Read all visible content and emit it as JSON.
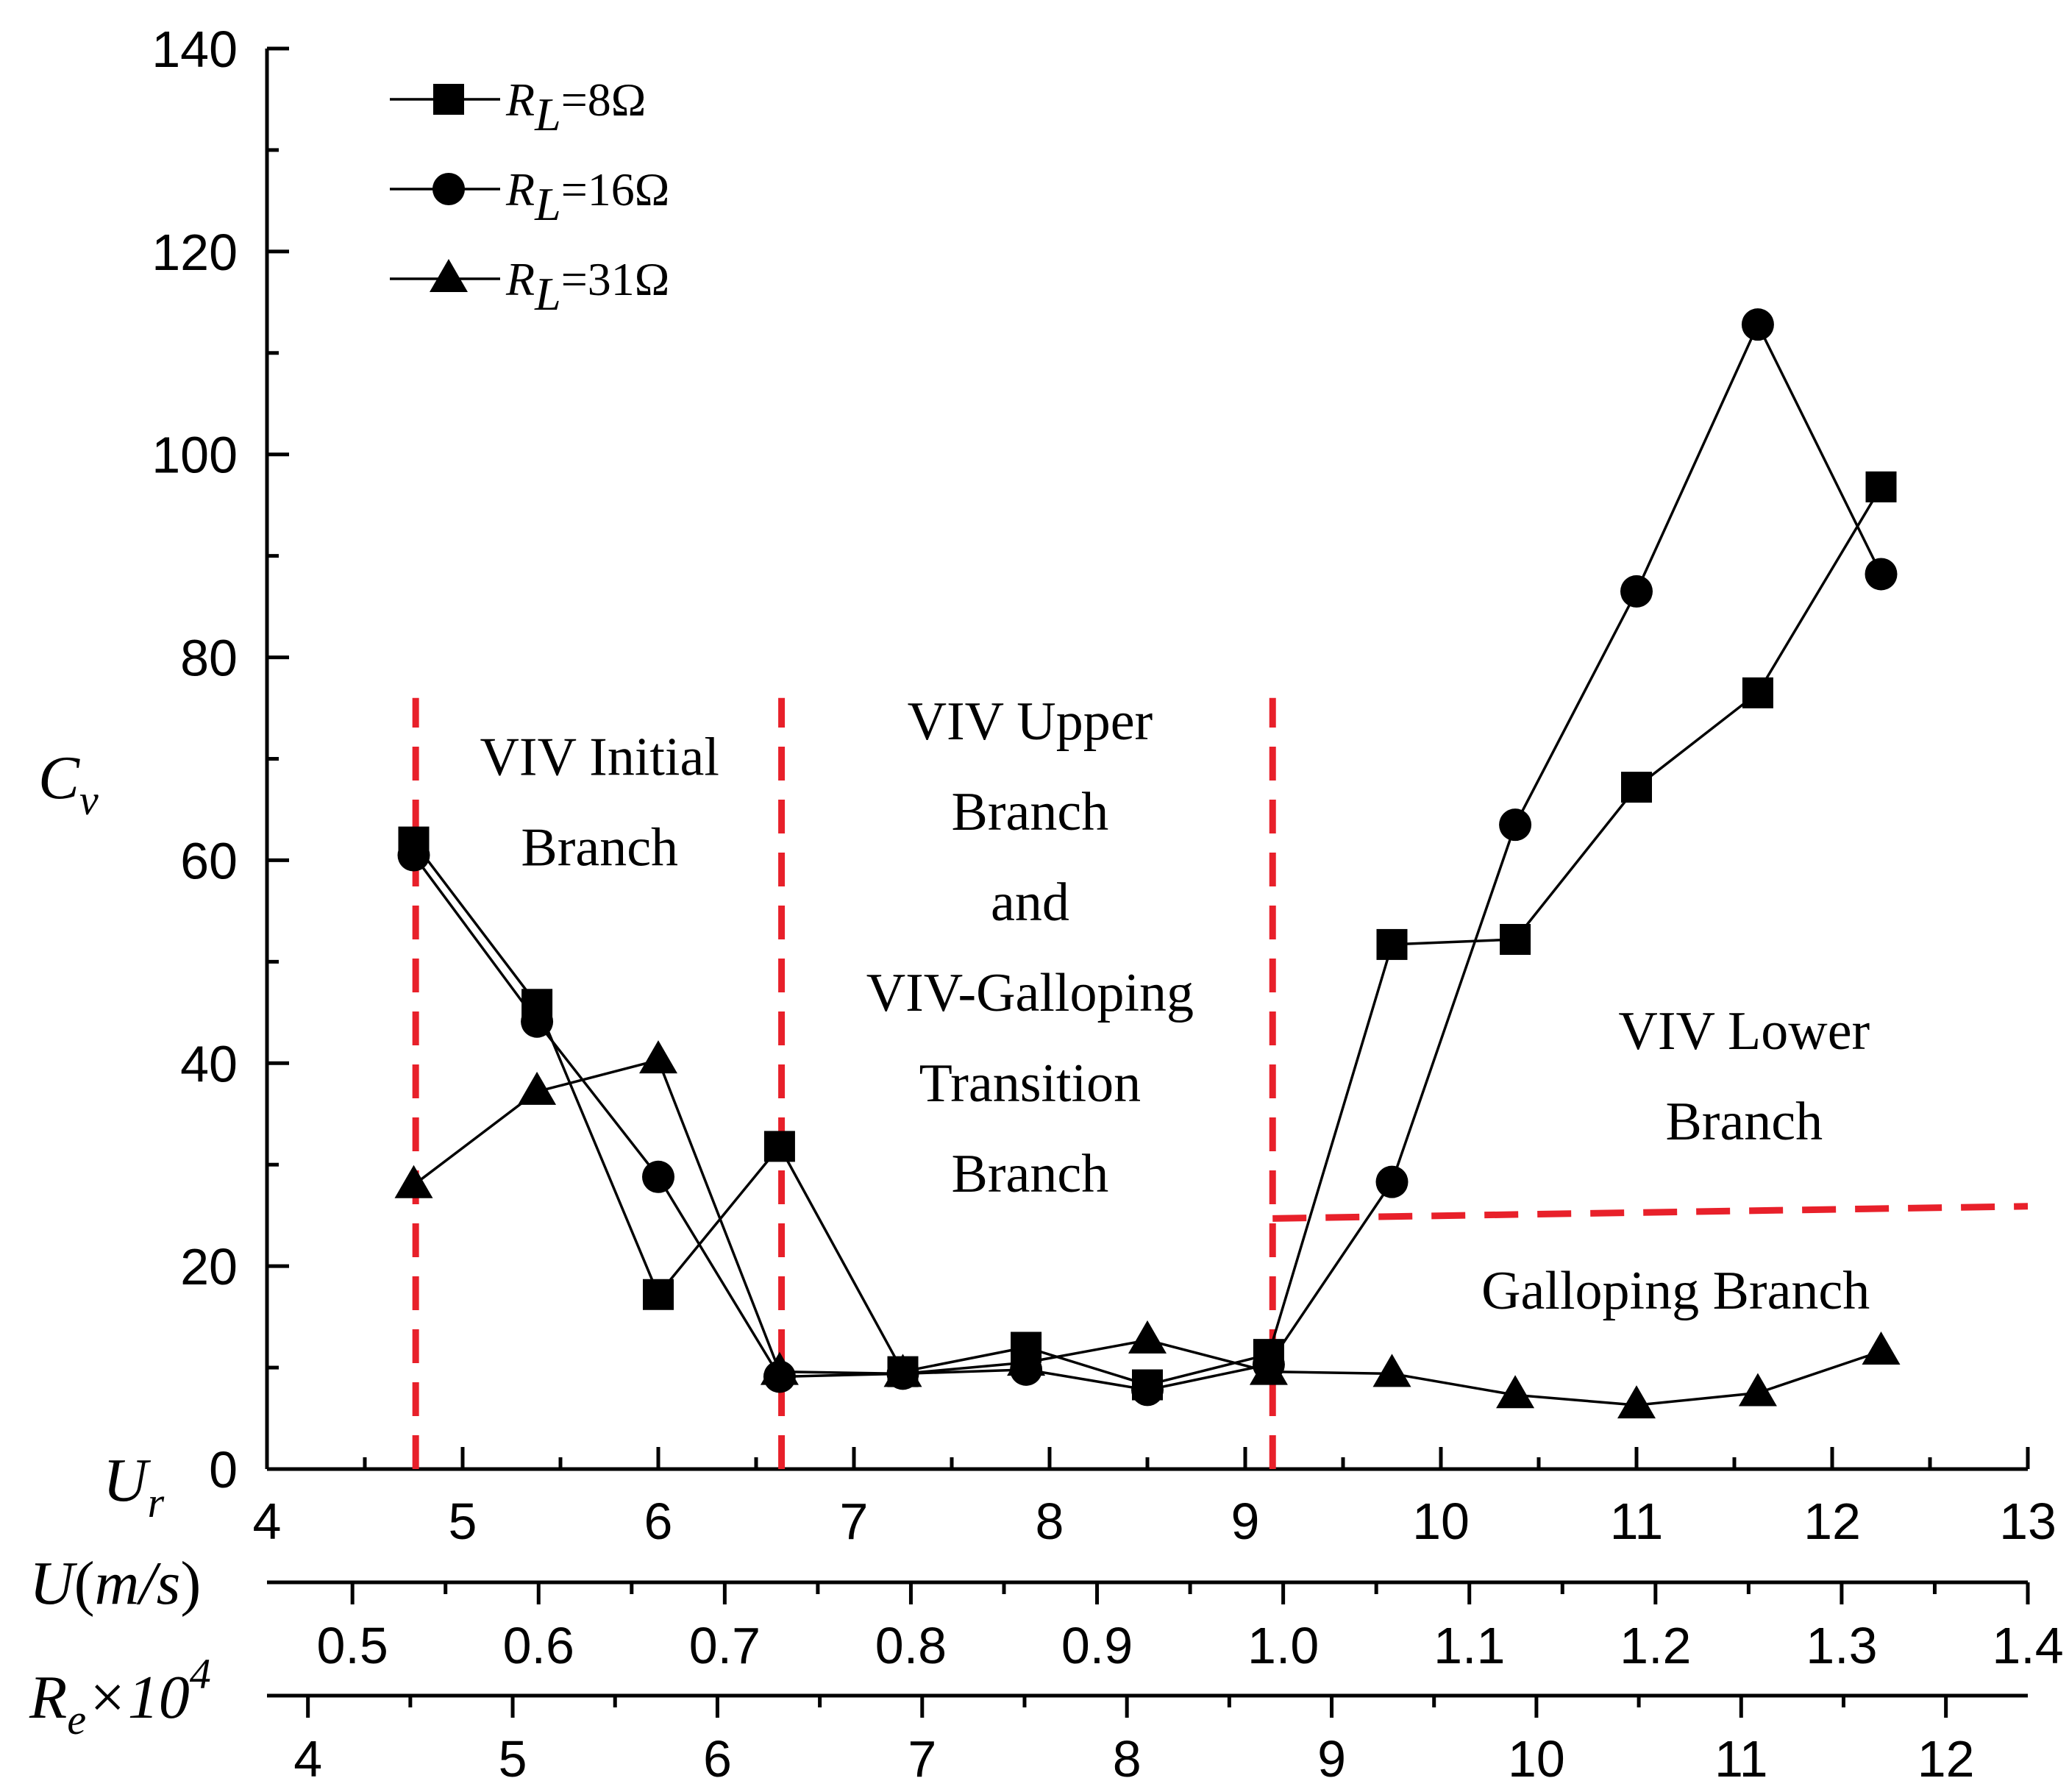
{
  "chart_data": {
    "type": "line",
    "title": "",
    "ylabel": "C_v",
    "y_axis_label": {
      "main": "C",
      "sub": "v"
    },
    "ylim": [
      0,
      140
    ],
    "y_major_ticks": [
      0,
      20,
      40,
      60,
      80,
      100,
      120,
      140
    ],
    "y_tick_labels": [
      "0",
      "20",
      "40",
      "60",
      "80",
      "100",
      "120",
      "140"
    ],
    "xlim": [
      4,
      13
    ],
    "x_axes": [
      {
        "id": "ur",
        "label": "U_r",
        "label_main": "U",
        "label_sub": "r",
        "range": [
          4,
          13
        ],
        "ticks": [
          4,
          5,
          6,
          7,
          8,
          9,
          10,
          11,
          12,
          13
        ],
        "tick_labels": [
          "4",
          "5",
          "6",
          "7",
          "8",
          "9",
          "10",
          "11",
          "12",
          "13"
        ]
      },
      {
        "id": "velocity",
        "label": "U(m/s)",
        "label_parts": [
          "U",
          "(",
          "m/s",
          ")"
        ],
        "range": [
          0.4541,
          1.4
        ],
        "ticks": [
          0.5,
          0.6,
          0.7,
          0.8,
          0.9,
          1.0,
          1.1,
          1.2,
          1.3,
          1.4
        ],
        "tick_labels": [
          "0.5",
          "0.6",
          "0.7",
          "0.8",
          "0.9",
          "1.0",
          "1.1",
          "1.2",
          "1.3",
          "1.4"
        ]
      },
      {
        "id": "reynolds",
        "label": "R_e×10^4",
        "label_main": "R",
        "label_sub": "e",
        "label_mult": "×10",
        "label_sup": "4",
        "range": [
          3.8,
          12.4
        ],
        "ticks": [
          4,
          5,
          6,
          7,
          8,
          9,
          10,
          11,
          12
        ],
        "tick_labels": [
          "4",
          "5",
          "6",
          "7",
          "8",
          "9",
          "10",
          "11",
          "12"
        ]
      }
    ],
    "series": [
      {
        "name": "R_L=8Ω",
        "legend_main": "R",
        "legend_sub": "L",
        "legend_rest": "=8Ω",
        "marker": "square",
        "points": [
          [
            4.75,
            61.8
          ],
          [
            5.38,
            45.8
          ],
          [
            6.0,
            17.2
          ],
          [
            6.62,
            31.8
          ],
          [
            7.25,
            9.6
          ],
          [
            7.88,
            12.0
          ],
          [
            8.5,
            8.3
          ],
          [
            9.12,
            11.3
          ],
          [
            9.75,
            51.7
          ],
          [
            10.38,
            52.2
          ],
          [
            11.0,
            67.2
          ],
          [
            11.62,
            76.5
          ],
          [
            12.25,
            96.8
          ]
        ]
      },
      {
        "name": "R_L=16Ω",
        "legend_main": "R",
        "legend_sub": "L",
        "legend_rest": "=16Ω",
        "marker": "circle",
        "points": [
          [
            4.75,
            60.5
          ],
          [
            5.38,
            44.1
          ],
          [
            6.0,
            28.8
          ],
          [
            6.62,
            9.1
          ],
          [
            7.25,
            9.4
          ],
          [
            7.88,
            9.8
          ],
          [
            8.5,
            7.8
          ],
          [
            9.12,
            10.3
          ],
          [
            9.75,
            28.3
          ],
          [
            10.38,
            63.5
          ],
          [
            11.0,
            86.5
          ],
          [
            11.62,
            112.8
          ],
          [
            12.25,
            88.2
          ]
        ]
      },
      {
        "name": "R_L=31Ω",
        "legend_main": "R",
        "legend_sub": "L",
        "legend_rest": "=31Ω",
        "marker": "triangle",
        "points": [
          [
            4.75,
            28.0
          ],
          [
            5.38,
            37.2
          ],
          [
            6.0,
            40.3
          ],
          [
            6.62,
            9.6
          ],
          [
            7.25,
            9.4
          ],
          [
            7.88,
            10.5
          ],
          [
            8.5,
            12.7
          ],
          [
            9.12,
            9.6
          ],
          [
            9.75,
            9.4
          ],
          [
            10.38,
            7.3
          ],
          [
            11.0,
            6.3
          ],
          [
            11.62,
            7.5
          ],
          [
            12.25,
            11.6
          ]
        ]
      }
    ],
    "branch_dividers": [
      {
        "type": "vertical",
        "x": 4.76,
        "y_from": 0,
        "y_to": 76
      },
      {
        "type": "vertical",
        "x": 6.63,
        "y_from": 0,
        "y_to": 76
      },
      {
        "type": "vertical",
        "x": 9.14,
        "y_from": 0,
        "y_to": 76
      },
      {
        "type": "sloped",
        "x1": 9.14,
        "y1": 24.7,
        "x2": 13.0,
        "y2": 25.9
      }
    ],
    "annotations": [
      {
        "lines": [
          "VIV Initial",
          "Branch"
        ],
        "x": 5.7,
        "y": 70.3
      },
      {
        "lines": [
          "VIV Upper",
          "Branch",
          "and",
          "VIV-Galloping",
          "Transition",
          "Branch"
        ],
        "x": 7.9,
        "y": 73.8
      },
      {
        "lines": [
          "VIV Lower",
          "Branch"
        ],
        "x": 11.55,
        "y": 43.3
      },
      {
        "lines": [
          "Galloping  Branch"
        ],
        "x": 11.2,
        "y": 17.7
      }
    ]
  }
}
